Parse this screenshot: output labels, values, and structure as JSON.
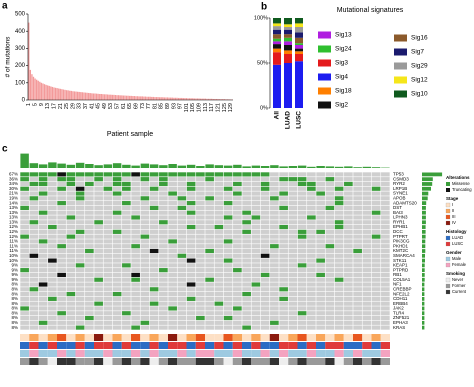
{
  "chart_data": [
    {
      "type": "bar",
      "panel": "a",
      "ylabel": "# of mutations",
      "xlabel": "Patient sample",
      "color": "#f39a9a",
      "ylim": [
        0,
        500
      ],
      "yticks": [
        0,
        100,
        200,
        300,
        400,
        500
      ],
      "categories": [
        1,
        null,
        null,
        null,
        5,
        null,
        null,
        null,
        9,
        null,
        null,
        null,
        13,
        null,
        null,
        null,
        17,
        null,
        null,
        null,
        21,
        null,
        null,
        null,
        25,
        null,
        null,
        null,
        29,
        null,
        null,
        null,
        33,
        null,
        null,
        null,
        37,
        null,
        null,
        null,
        41,
        null,
        null,
        null,
        45,
        null,
        null,
        null,
        49,
        null,
        null,
        null,
        53,
        null,
        null,
        null,
        57,
        null,
        null,
        null,
        61,
        null,
        null,
        null,
        65,
        null,
        null,
        null,
        69,
        null,
        null,
        null,
        73,
        null,
        null,
        null,
        77,
        null,
        null,
        null,
        81,
        null,
        null,
        null,
        85,
        null,
        null,
        null,
        89,
        null,
        null,
        null,
        93,
        null,
        null,
        null,
        97,
        null,
        null,
        null,
        101,
        null,
        null,
        null,
        105,
        null,
        null,
        null,
        109,
        null,
        null,
        null,
        113,
        null,
        null,
        null,
        117,
        null,
        null,
        null,
        121,
        null,
        null,
        null,
        125,
        null,
        null,
        null,
        129,
        null
      ],
      "values": [
        450,
        175,
        150,
        135,
        125,
        118,
        112,
        106,
        100,
        96,
        92,
        88,
        85,
        82,
        79,
        76,
        73,
        71,
        69,
        67,
        65,
        63,
        61,
        59,
        57,
        56,
        54,
        53,
        51,
        50,
        49,
        48,
        47,
        46,
        45,
        44,
        43,
        42,
        41,
        40,
        39,
        38,
        38,
        37,
        36,
        35,
        35,
        34,
        33,
        33,
        32,
        31,
        31,
        30,
        30,
        29,
        28,
        28,
        27,
        27,
        26,
        26,
        25,
        25,
        24,
        24,
        23,
        23,
        22,
        22,
        21,
        21,
        21,
        20,
        20,
        19,
        19,
        19,
        18,
        18,
        17,
        17,
        17,
        16,
        16,
        16,
        15,
        15,
        15,
        14,
        14,
        14,
        13,
        13,
        13,
        12,
        12,
        12,
        11,
        11,
        11,
        10,
        10,
        10,
        10,
        9,
        9,
        9,
        9,
        8,
        8,
        8,
        8,
        7,
        7,
        7,
        7,
        6,
        6,
        6,
        6,
        5,
        5,
        5,
        5,
        4,
        4,
        4,
        3,
        3
      ]
    },
    {
      "type": "stacked_bar",
      "panel": "b",
      "title": "Mutational signatures",
      "categories": [
        "All",
        "LUAD",
        "LUSC"
      ],
      "ylim": [
        0,
        100
      ],
      "yticks": [
        {
          "value": 0,
          "label": "0%"
        },
        {
          "value": 50,
          "label": "50%"
        },
        {
          "value": 100,
          "label": "100%"
        }
      ],
      "series": [
        {
          "name": "Sig4",
          "color": "#1c1cf0",
          "values": [
            48,
            50,
            52
          ]
        },
        {
          "name": "Sig3",
          "color": "#e41a1c",
          "values": [
            14,
            10,
            8
          ]
        },
        {
          "name": "Sig18",
          "color": "#ff7f00",
          "values": [
            4,
            4,
            3
          ]
        },
        {
          "name": "Sig2",
          "color": "#111111",
          "values": [
            5,
            6,
            3
          ]
        },
        {
          "name": "Sig13",
          "color": "#b01ee0",
          "values": [
            3,
            4,
            4
          ]
        },
        {
          "name": "Sig24",
          "color": "#2fbf2f",
          "values": [
            3,
            4,
            2
          ]
        },
        {
          "name": "Sig16",
          "color": "#8b5a2b",
          "values": [
            5,
            4,
            6
          ]
        },
        {
          "name": "Sig7",
          "color": "#1b1b6e",
          "values": [
            5,
            5,
            6
          ]
        },
        {
          "name": "Sig29",
          "color": "#9a9a9a",
          "values": [
            4,
            3,
            6
          ]
        },
        {
          "name": "Sig12",
          "color": "#f5e61a",
          "values": [
            3,
            3,
            4
          ]
        },
        {
          "name": "Sig10",
          "color": "#0f5a1e",
          "values": [
            6,
            7,
            6
          ]
        }
      ]
    },
    {
      "type": "oncoprint",
      "panel": "c",
      "ylim": [
        0,
        200
      ],
      "color": "#3a9e3a",
      "background": "#cfcfcf",
      "xlim": [
        0,
        100
      ],
      "values": [
        180,
        60,
        45,
        70,
        55,
        40,
        65,
        50,
        35,
        45,
        60,
        40,
        30,
        55,
        45,
        35,
        50,
        30,
        40,
        25,
        45,
        35,
        30,
        40,
        20,
        30,
        25,
        35,
        20,
        25,
        30,
        15,
        25,
        20,
        15,
        20,
        10,
        15,
        10,
        5
      ],
      "alteration_title": "Alterations",
      "alterations": [
        {
          "code": "m",
          "label": "Missense",
          "color": "#3a9e3a"
        },
        {
          "code": "t",
          "label": "Truncating",
          "color": "#111111"
        }
      ],
      "genes": [
        {
          "name": "TP53",
          "value": 67,
          "value_label": "67%",
          "cells": "mmmmtmmmmmmmtmmmmmmmmmmmmmm............."
        },
        {
          "name": "CSMD3",
          "value": 36,
          "value_label": "36%",
          "cells": "m.m.mm..m.m..m.m....m.......mmm..m......"
        },
        {
          "name": "RYR2",
          "value": 34,
          "value_label": "34%",
          "cells": ".mm..m.m..mm...m..m....m..m...mm...m...."
        },
        {
          "name": "LRP1B",
          "value": 30,
          "value_label": "30%",
          "cells": "m...m.t..m.m..m...m...m...m....m..m...m."
        },
        {
          "name": "SYNE1",
          "value": 21,
          "value_label": "21%",
          "cells": "..m...m...m.....m......m....m...m......."
        },
        {
          "name": "APOB",
          "value": 19,
          "value_label": "19%",
          "cells": ".m....m......m...m..m......m......m....."
        },
        {
          "name": "ADAMTS20",
          "value": 14,
          "value_label": "14%",
          "cells": "....m......m......m...m...........m...."
        },
        {
          "name": "DST",
          "value": 13,
          "value_label": "13%",
          "cells": "m.............m..m..........m....m......"
        },
        {
          "name": "BAI3",
          "value": 13,
          "value_label": "13%",
          "cells": "..m.......m.......m.....m.............m."
        },
        {
          "name": "LPHN3",
          "value": 13,
          "value_label": "13%",
          "cells": ".....m......m.........m..m.....m...."
        },
        {
          "name": "RYR1",
          "value": 13,
          "value_label": "13%",
          "cells": ".m......m......m........m.........m......."
        },
        {
          "name": "EPHB1",
          "value": 12,
          "value_label": "12%",
          "cells": "...m..............m..m......m.....m....."
        },
        {
          "name": "DCC",
          "value": 12,
          "value_label": "12%",
          "cells": "......m...m.............m.....m.m........"
        },
        {
          "name": "PTPRT",
          "value": 12,
          "value_label": "12%",
          "cells": "m....m.......m................m.......m..."
        },
        {
          "name": "PIK3CG",
          "value": 11,
          "value_label": "11%",
          "cells": "..m.............m.....m...................m.."
        },
        {
          "name": "PKHD1",
          "value": 11,
          "value_label": "11%",
          "cells": "....m.......m..............m.....m........."
        },
        {
          "name": "KMT2C",
          "value": 11,
          "value_label": "11%",
          "cells": ".......m......t.....m...............m....."
        },
        {
          "name": "SMARCA4",
          "value": 10,
          "value_label": "10%",
          "cells": ".t...............m........t.............m."
        },
        {
          "name": "STK11",
          "value": 10,
          "value_label": "10%",
          "cells": "...t..............t...m.........m........"
        },
        {
          "name": "KEAP1",
          "value": 9,
          "value_label": "9%",
          "cells": "......m....m..................m.........m..."
        },
        {
          "name": "PTPRD",
          "value": 9,
          "value_label": "9%",
          "cells": "m..............m.......m................."
        },
        {
          "name": "RB1",
          "value": 9,
          "value_label": "9%",
          "cells": "....t.......t.............m.....m......"
        },
        {
          "name": "COL5A1",
          "value": 9,
          "value_label": "9%",
          "cells": "........m...m.......m.............m...."
        },
        {
          "name": "NF1",
          "value": 8,
          "value_label": "8%",
          "cells": "..t...............t......m.............."
        },
        {
          "name": "CREBBP",
          "value": 8,
          "value_label": "8%",
          "cells": ".m............m.............m..........."
        },
        {
          "name": "NFE2L2",
          "value": 8,
          "value_label": "8%",
          "cells": ".....m....m.............m..............."
        },
        {
          "name": "CDH11",
          "value": 8,
          "value_label": "8%",
          "cells": "...m..............m.........m..........."
        },
        {
          "name": "ERBB4",
          "value": 8,
          "value_label": "8%",
          "cells": "........m.....m......m.................."
        },
        {
          "name": "JAK2",
          "value": 8,
          "value_label": "8%",
          "cells": "m...............m......m................"
        },
        {
          "name": "TLR4",
          "value": 8,
          "value_label": "8%",
          "cells": "....m......m..................m........."
        },
        {
          "name": "ZNF521",
          "value": 8,
          "value_label": "8%",
          "cells": ".......m...........m..m................."
        },
        {
          "name": "EPHA3",
          "value": 8,
          "value_label": "8%",
          "cells": "..m..........m.............m............"
        },
        {
          "name": "KRAS",
          "value": 8,
          "value_label": "8%",
          "cells": "......m.....m...........m..............."
        }
      ],
      "tracks": [
        {
          "name": "Stage",
          "cells": "1212312141213121412311321214123121213121",
          "levels": [
            {
              "code": "1",
              "label": "I",
              "color": "#fde0c5"
            },
            {
              "code": "2",
              "label": "II",
              "color": "#f9a65a"
            },
            {
              "code": "3",
              "label": "III",
              "color": "#e8561e"
            },
            {
              "code": "4",
              "label": "IV",
              "color": "#8b1a0e"
            }
          ]
        },
        {
          "name": "Histology",
          "cells": "asasaasassasaasassasasasasaassasassaasas",
          "levels": [
            {
              "code": "a",
              "label": "LUAD",
              "color": "#2b6cc4"
            },
            {
              "code": "s",
              "label": "LUSC",
              "color": "#e03a3a"
            }
          ]
        },
        {
          "name": "Gender",
          "cells": "mfmmfmfmmfmmfmfmmfmffmmfmmfmfmmfmmfmfmmf",
          "levels": [
            {
              "code": "m",
              "label": "Male",
              "color": "#9ecae1"
            },
            {
              "code": "f",
              "label": "Female",
              "color": "#f4a3c0"
            }
          ]
        },
        {
          "name": "Smoking",
          "cells": "fcfnccffcnfcfcnfcffccfnfcffcnfcffcnfcfcf",
          "levels": [
            {
              "code": "n",
              "label": "Never",
              "color": "#eeeeee"
            },
            {
              "code": "f",
              "label": "Former",
              "color": "#999999"
            },
            {
              "code": "c",
              "label": "Current",
              "color": "#333333"
            }
          ]
        }
      ]
    }
  ]
}
